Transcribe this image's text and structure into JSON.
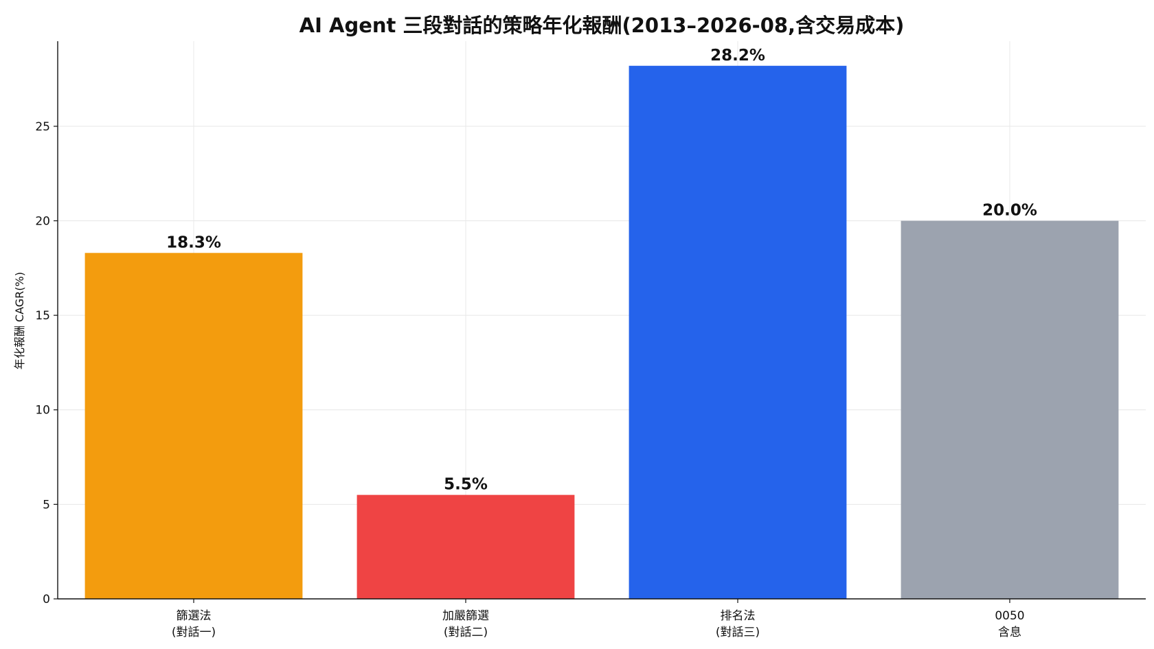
{
  "chart_data": {
    "type": "bar",
    "title": "AI Agent 三段對話的策略年化報酬(2013–2026-08,含交易成本)",
    "xlabel": "",
    "ylabel": "年化報酬 CAGR(%)",
    "ylim": [
      0,
      29.5
    ],
    "yticks": [
      0,
      5,
      10,
      15,
      20,
      25
    ],
    "grid": true,
    "categories": [
      {
        "line1": "篩選法",
        "line2": "(對話一)"
      },
      {
        "line1": "加嚴篩選",
        "line2": "(對話二)"
      },
      {
        "line1": "排名法",
        "line2": "(對話三)"
      },
      {
        "line1": "0050",
        "line2": "含息"
      }
    ],
    "values": [
      18.3,
      5.5,
      28.2,
      20.0
    ],
    "value_labels": [
      "18.3%",
      "5.5%",
      "28.2%",
      "20.0%"
    ],
    "colors": [
      "#f39c0e",
      "#ef4444",
      "#2563eb",
      "#9ca3af"
    ]
  }
}
